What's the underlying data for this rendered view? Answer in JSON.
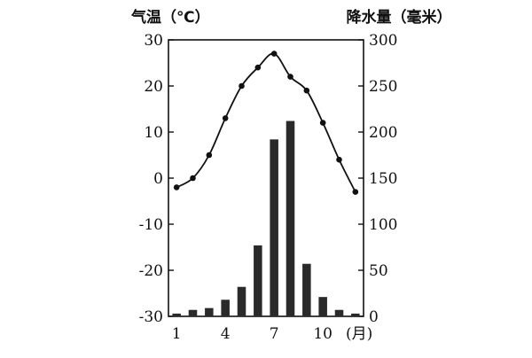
{
  "chart_data": {
    "type": "bar+line",
    "title": "",
    "y_left_label": "气温（℃）",
    "y_right_label": "降水量（毫米）",
    "x_unit_label": "(月)",
    "x_tick_labels": [
      "1",
      "4",
      "7",
      "10"
    ],
    "x_tick_months": [
      1,
      4,
      7,
      10
    ],
    "y_left_ticks": [
      "30",
      "20",
      "10",
      "0",
      "-10",
      "-20",
      "-30"
    ],
    "y_left_tick_values": [
      30,
      20,
      10,
      0,
      -10,
      -20,
      -30
    ],
    "y_right_ticks": [
      "300",
      "250",
      "200",
      "150",
      "100",
      "50",
      "0"
    ],
    "y_right_tick_values": [
      300,
      250,
      200,
      150,
      100,
      50,
      0
    ],
    "y_left_range": [
      -30,
      30
    ],
    "y_right_range": [
      0,
      300
    ],
    "months": [
      1,
      2,
      3,
      4,
      5,
      6,
      7,
      8,
      9,
      10,
      11,
      12
    ],
    "temperature": [
      -2,
      0,
      5,
      13,
      20,
      24,
      27,
      22,
      19,
      12,
      4,
      -3
    ],
    "precipitation": [
      3,
      7,
      9,
      18,
      32,
      77,
      192,
      212,
      57,
      21,
      7,
      3
    ],
    "bar_color": "#2a2a2a",
    "line_color": "#111111"
  }
}
